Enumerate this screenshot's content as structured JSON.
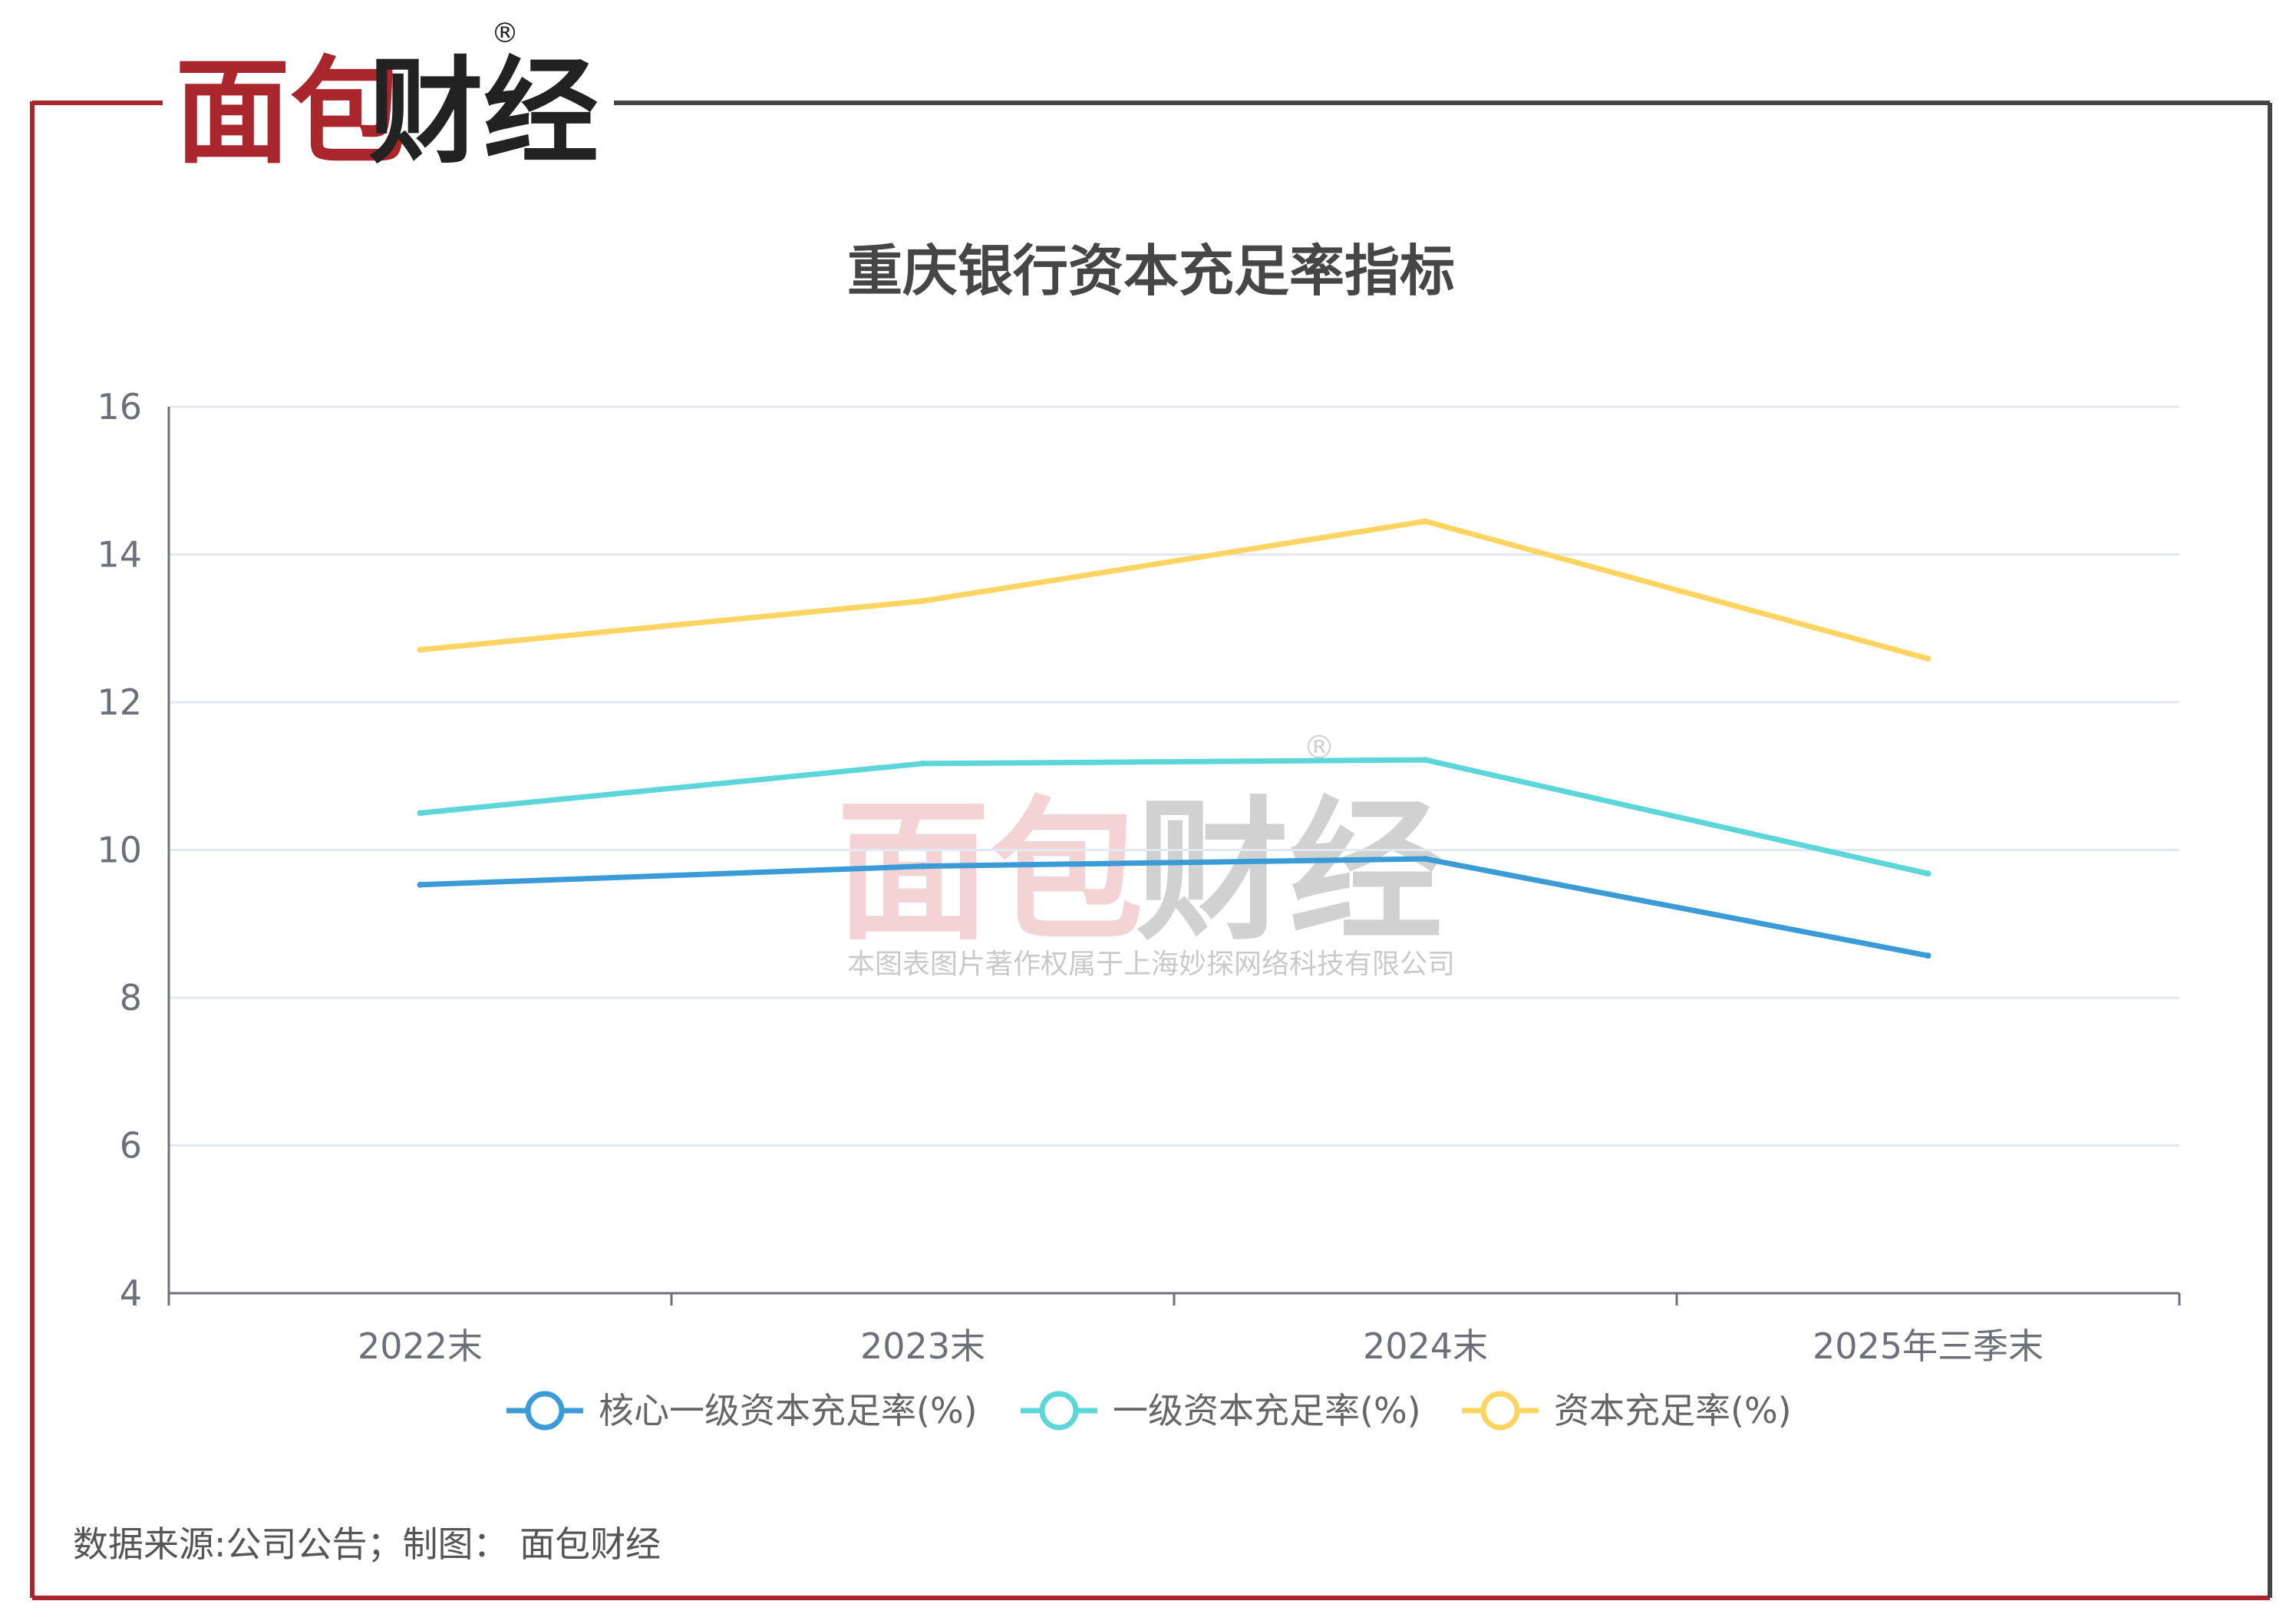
{
  "brand": {
    "logo_red": "面包",
    "logo_dark": "财经",
    "registered_mark": "®",
    "watermark_caption": "本图表图片著作权属于上海妙探网络科技有限公司"
  },
  "colors": {
    "brand_red": "#a8262c",
    "frame_dark": "#444444",
    "series_core": "#3b9bd6",
    "series_tier1": "#5cd6d8",
    "series_total": "#fbd462",
    "grid": "#e4e8f0",
    "axis": "#6e7079",
    "title": "#464646"
  },
  "footer": {
    "source": "数据来源:公司公告；制图：  面包财经"
  },
  "chart_data": {
    "type": "line",
    "title": "重庆银行资本充足率指标",
    "xlabel": "",
    "ylabel": "",
    "categories": [
      "2022末",
      "2023末",
      "2024末",
      "2025年三季末"
    ],
    "ylim": [
      4,
      16
    ],
    "yticks": [
      4,
      6,
      8,
      10,
      12,
      14,
      16
    ],
    "grid": true,
    "legend_position": "bottom",
    "series": [
      {
        "name": "核心一级资本充足率(%)",
        "values": [
          9.53,
          9.78,
          9.88,
          8.57
        ],
        "color": "#3b9bd6"
      },
      {
        "name": "一级资本充足率(%)",
        "values": [
          10.5,
          11.17,
          11.22,
          9.68
        ],
        "color": "#5cd6d8"
      },
      {
        "name": "资本充足率(%)",
        "values": [
          12.71,
          13.37,
          14.45,
          12.59
        ],
        "color": "#fbd462"
      }
    ]
  }
}
